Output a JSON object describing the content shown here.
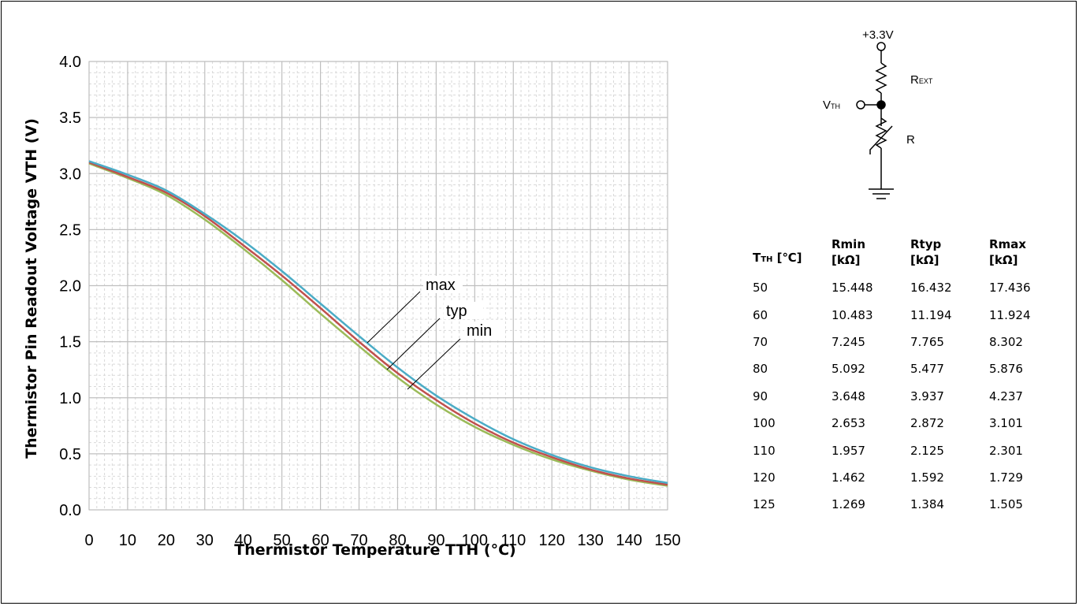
{
  "chart_data": {
    "type": "line",
    "title": "",
    "xlabel": "Thermistor Temperature TTH (°C)",
    "ylabel": "Thermistor Pin Readout Voltage VTH (V)",
    "xlim": [
      0,
      150
    ],
    "ylim": [
      0,
      4
    ],
    "x_ticks": [
      "0",
      "10",
      "20",
      "30",
      "40",
      "50",
      "60",
      "70",
      "80",
      "90",
      "100",
      "110",
      "120",
      "130",
      "140",
      "150"
    ],
    "y_ticks": [
      "0.0",
      "0.5",
      "1.0",
      "1.5",
      "2.0",
      "2.5",
      "3.0",
      "3.5",
      "4.0"
    ],
    "grid": true,
    "x": [
      0,
      10,
      20,
      30,
      40,
      50,
      60,
      70,
      80,
      90,
      100,
      110,
      120,
      130,
      140,
      150
    ],
    "series": [
      {
        "name": "max",
        "color": "#4bacc6",
        "values": [
          3.11,
          2.99,
          2.85,
          2.64,
          2.4,
          2.13,
          1.84,
          1.55,
          1.27,
          1.02,
          0.81,
          0.63,
          0.49,
          0.38,
          0.3,
          0.24
        ]
      },
      {
        "name": "typ",
        "color": "#c0504d",
        "values": [
          3.1,
          2.97,
          2.83,
          2.62,
          2.36,
          2.09,
          1.8,
          1.5,
          1.22,
          0.98,
          0.77,
          0.6,
          0.47,
          0.36,
          0.28,
          0.225
        ]
      },
      {
        "name": "min",
        "color": "#9bbb59",
        "values": [
          3.09,
          2.96,
          2.81,
          2.59,
          2.33,
          2.05,
          1.75,
          1.46,
          1.18,
          0.94,
          0.74,
          0.58,
          0.45,
          0.35,
          0.27,
          0.215
        ]
      }
    ],
    "annotations": [
      "max",
      "typ",
      "min"
    ],
    "grid_color": "#bfbfbf",
    "minor_grid_color": "#d9d9d9"
  },
  "circuit": {
    "supply": "+3.3V",
    "rext_main": "R",
    "rext_sub": "EXT",
    "vth_main": "V",
    "vth_sub": "TH",
    "r_label": "R"
  },
  "table": {
    "headers": [
      {
        "main": "T",
        "sub": "TH",
        "rest": " [℃]"
      },
      {
        "line1": "Rmin",
        "line2": "[kΩ]"
      },
      {
        "line1": "Rtyp",
        "line2": "[kΩ]"
      },
      {
        "line1": "Rmax",
        "line2": "[kΩ]"
      }
    ],
    "rows": [
      [
        "50",
        "15.448",
        "16.432",
        "17.436"
      ],
      [
        "60",
        "10.483",
        "11.194",
        "11.924"
      ],
      [
        "70",
        "7.245",
        "7.765",
        "8.302"
      ],
      [
        "80",
        "5.092",
        "5.477",
        "5.876"
      ],
      [
        "90",
        "3.648",
        "3.937",
        "4.237"
      ],
      [
        "100",
        "2.653",
        "2.872",
        "3.101"
      ],
      [
        "110",
        "1.957",
        "2.125",
        "2.301"
      ],
      [
        "120",
        "1.462",
        "1.592",
        "1.729"
      ],
      [
        "125",
        "1.269",
        "1.384",
        "1.505"
      ]
    ]
  }
}
